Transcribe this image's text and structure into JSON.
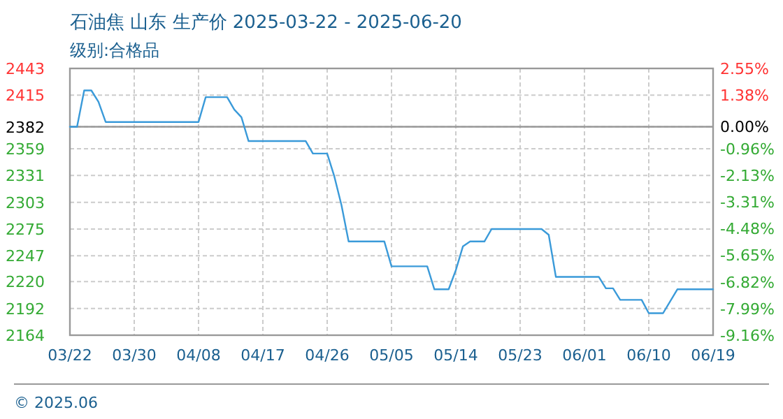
{
  "chart_data": {
    "type": "line",
    "title": "石油焦 山东 生产价 2025-03-22 - 2025-06-20",
    "subtitle": "级别:合格品",
    "annotations": [
      "© 2025.06"
    ],
    "x": [
      "2025-03-22",
      "2025-03-23",
      "2025-03-24",
      "2025-03-25",
      "2025-03-26",
      "2025-03-27",
      "2025-04-09",
      "2025-04-10",
      "2025-04-13",
      "2025-04-14",
      "2025-04-15",
      "2025-04-16",
      "2025-04-24",
      "2025-04-25",
      "2025-04-27",
      "2025-04-28",
      "2025-04-29",
      "2025-04-30",
      "2025-05-05",
      "2025-05-06",
      "2025-05-11",
      "2025-05-12",
      "2025-05-14",
      "2025-05-15",
      "2025-05-16",
      "2025-05-17",
      "2025-05-19",
      "2025-05-20",
      "2025-05-27",
      "2025-05-28",
      "2025-05-29",
      "2025-06-04",
      "2025-06-05",
      "2025-06-06",
      "2025-06-07",
      "2025-06-10",
      "2025-06-11",
      "2025-06-13",
      "2025-06-15",
      "2025-06-20"
    ],
    "series": [
      {
        "color": "#3a9ad9",
        "values": [
          2382,
          2382,
          2420,
          2420,
          2408,
          2387,
          2387,
          2413,
          2413,
          2400,
          2392,
          2367,
          2367,
          2354,
          2354,
          2330,
          2300,
          2262,
          2262,
          2236,
          2236,
          2212,
          2212,
          2232,
          2257,
          2262,
          2262,
          2275,
          2275,
          2269,
          2225,
          2225,
          2213,
          2213,
          2201,
          2201,
          2187,
          2187,
          2212,
          2212
        ]
      }
    ],
    "xlim": [
      "2025-03-22",
      "2025-06-20"
    ],
    "xticks": [
      {
        "value": "2025-03-22",
        "label": "03/22"
      },
      {
        "value": "2025-03-31",
        "label": "03/30"
      },
      {
        "value": "2025-04-09",
        "label": "04/08"
      },
      {
        "value": "2025-04-18",
        "label": "04/17"
      },
      {
        "value": "2025-04-27",
        "label": "04/26"
      },
      {
        "value": "2025-05-06",
        "label": "05/05"
      },
      {
        "value": "2025-05-15",
        "label": "05/14"
      },
      {
        "value": "2025-05-24",
        "label": "05/23"
      },
      {
        "value": "2025-06-02",
        "label": "06/01"
      },
      {
        "value": "2025-06-11",
        "label": "06/10"
      },
      {
        "value": "2025-06-20",
        "label": "06/19"
      }
    ],
    "ylim": [
      2164,
      2443
    ],
    "yticks": [
      2443,
      2415,
      2382,
      2359,
      2331,
      2303,
      2275,
      2247,
      2220,
      2192,
      2164
    ],
    "y2lim": [
      -9.16,
      2.55
    ],
    "y2ticks": [
      {
        "value": 2.55,
        "label": "2.55%"
      },
      {
        "value": 1.38,
        "label": "1.38%"
      },
      {
        "value": 0,
        "label": "0.00%"
      },
      {
        "value": -0.96,
        "label": "-0.96%"
      },
      {
        "value": -2.13,
        "label": "-2.13%"
      },
      {
        "value": -3.31,
        "label": "-3.31%"
      },
      {
        "value": -4.48,
        "label": "-4.48%"
      },
      {
        "value": -5.65,
        "label": "-5.65%"
      },
      {
        "value": -6.82,
        "label": "-6.82%"
      },
      {
        "value": -7.99,
        "label": "-7.99%"
      },
      {
        "value": -9.16,
        "label": "-9.16%"
      }
    ],
    "ref_lines": [
      {
        "axis": "y",
        "value": 2382,
        "color": "#999999"
      }
    ],
    "grid": true
  }
}
